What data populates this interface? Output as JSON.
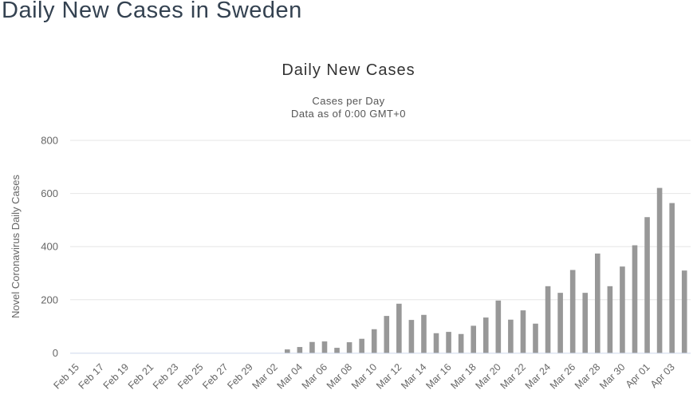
{
  "page": {
    "title": "Daily New Cases in Sweden"
  },
  "chart_data": {
    "type": "bar",
    "title": "Daily New Cases",
    "subtitle_line1": "Cases per Day",
    "subtitle_line2": "Data as of 0:00 GMT+0",
    "xlabel": "",
    "ylabel": "Novel Coronavirus Daily Cases",
    "ylim": [
      0,
      800
    ],
    "yticks": [
      0,
      200,
      400,
      600,
      800
    ],
    "grid": true,
    "legend": "none",
    "xlabel_step": 2,
    "xlabel_rotation": -45,
    "categories": [
      "Feb 15",
      "Feb 16",
      "Feb 17",
      "Feb 18",
      "Feb 19",
      "Feb 20",
      "Feb 21",
      "Feb 22",
      "Feb 23",
      "Feb 24",
      "Feb 25",
      "Feb 26",
      "Feb 27",
      "Feb 28",
      "Feb 29",
      "Mar 01",
      "Mar 02",
      "Mar 03",
      "Mar 04",
      "Mar 05",
      "Mar 06",
      "Mar 07",
      "Mar 08",
      "Mar 09",
      "Mar 10",
      "Mar 11",
      "Mar 12",
      "Mar 13",
      "Mar 14",
      "Mar 15",
      "Mar 16",
      "Mar 17",
      "Mar 18",
      "Mar 19",
      "Mar 20",
      "Mar 21",
      "Mar 22",
      "Mar 23",
      "Mar 24",
      "Mar 25",
      "Mar 26",
      "Mar 27",
      "Mar 28",
      "Mar 29",
      "Mar 30",
      "Mar 31",
      "Apr 01",
      "Apr 02",
      "Apr 03",
      "Apr 04"
    ],
    "values": [
      0,
      0,
      0,
      0,
      0,
      0,
      0,
      0,
      0,
      0,
      0,
      0,
      0,
      0,
      0,
      0,
      0,
      13,
      22,
      41,
      43,
      19,
      40,
      53,
      89,
      139,
      185,
      124,
      143,
      74,
      79,
      71,
      102,
      133,
      197,
      125,
      160,
      110,
      251,
      226,
      312,
      226,
      374,
      251,
      325,
      405,
      511,
      621,
      564,
      310
    ],
    "series_name": "Daily Cases",
    "colors": {
      "bar": "#989898",
      "grid": "#e6e6e6",
      "axis_line": "#ccd6eb",
      "axis_label": "#666666",
      "title": "#333333",
      "subtitle": "#555555",
      "page_title": "#344251"
    }
  }
}
